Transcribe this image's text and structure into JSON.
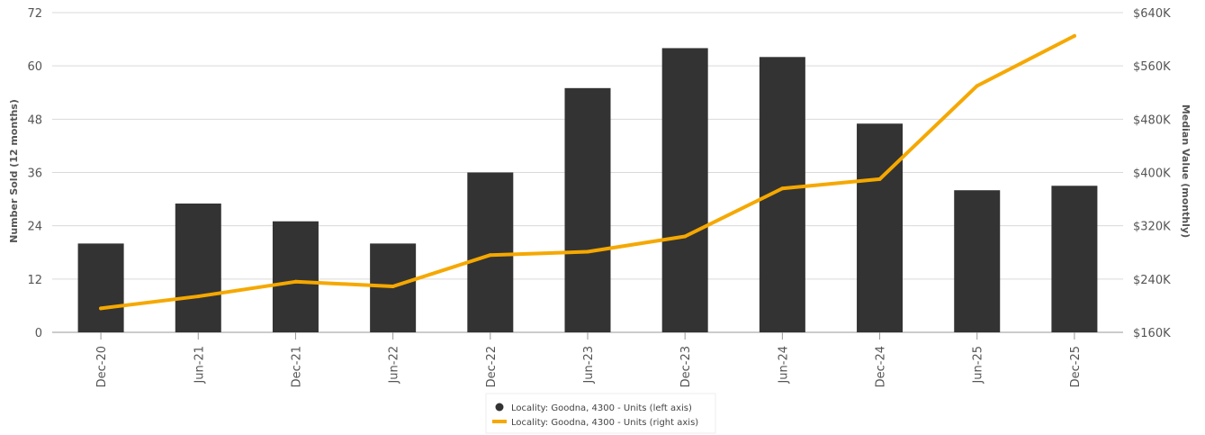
{
  "chart_data": {
    "type": "bar",
    "categories": [
      "Dec-20",
      "Jun-21",
      "Dec-21",
      "Jun-22",
      "Dec-22",
      "Jun-23",
      "Dec-23",
      "Jun-24",
      "Dec-24",
      "Jun-25",
      "Dec-25"
    ],
    "series": [
      {
        "name": "Locality: Goodna, 4300 - Units (left axis)",
        "type": "bar",
        "axis": "left",
        "color": "#333333",
        "values": [
          20,
          29,
          25,
          20,
          36,
          55,
          64,
          62,
          47,
          32,
          33
        ]
      },
      {
        "name": "Locality: Goodna, 4300 - Units (right axis)",
        "type": "line",
        "axis": "right",
        "color": "#F5A800",
        "values": [
          196000,
          214000,
          236000,
          229000,
          276000,
          281000,
          304000,
          376000,
          390000,
          530000,
          605000
        ]
      }
    ],
    "ylabel": "Number Sold (12 months)",
    "ylabel_right": "Median Value (monthly)",
    "ylim": [
      0,
      72
    ],
    "ylim_right": [
      160000,
      640000
    ],
    "yticks": [
      "0",
      "12",
      "24",
      "36",
      "48",
      "60",
      "72"
    ],
    "yticks_right": [
      "$160K",
      "$240K",
      "$320K",
      "$400K",
      "$480K",
      "$560K",
      "$640K"
    ],
    "grid": true,
    "legend_position": "bottom"
  }
}
